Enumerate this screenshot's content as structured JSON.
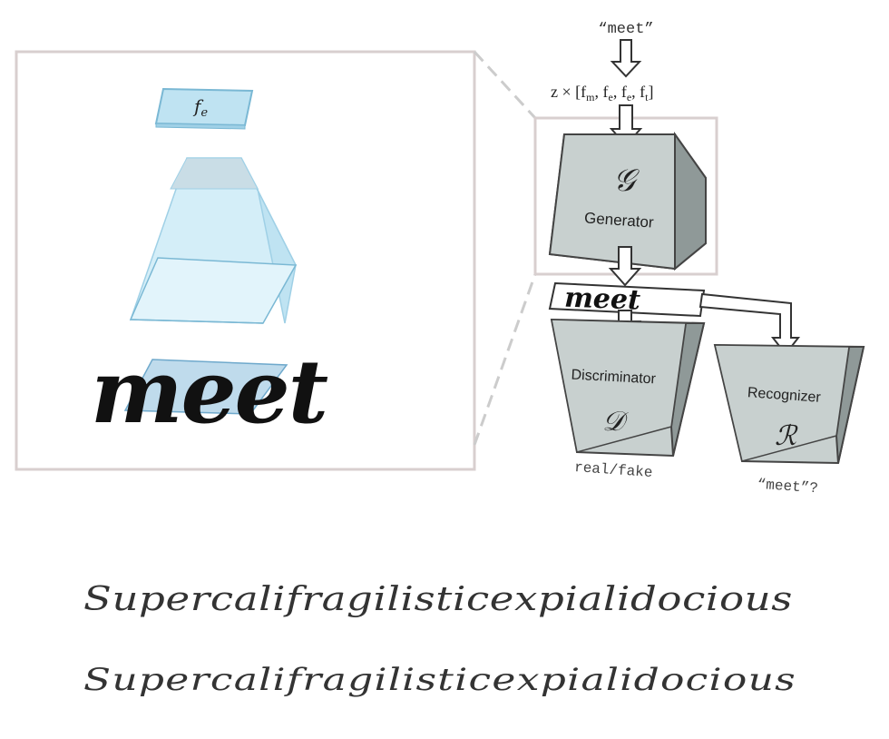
{
  "diagram": {
    "input_word": "“meet”",
    "input_code": "z × [f",
    "input_code_parts": [
      "m",
      "e",
      "e",
      "t"
    ],
    "input_code_close": "]",
    "zoom_token": "f",
    "zoom_token_sub": "e",
    "generated_word": "meet",
    "zoom_word": "meet",
    "generator": {
      "symbol": "𝒢",
      "label": "Generator"
    },
    "discriminator": {
      "symbol": "𝒟",
      "label": "Discriminator",
      "output": "real/fake"
    },
    "recognizer": {
      "symbol": "ℛ",
      "label": "Recognizer",
      "output": "“meet”?"
    }
  },
  "samples": [
    "Supercalifragilisticexpialidocious",
    "Supercalifragilisticexpialidocious"
  ]
}
